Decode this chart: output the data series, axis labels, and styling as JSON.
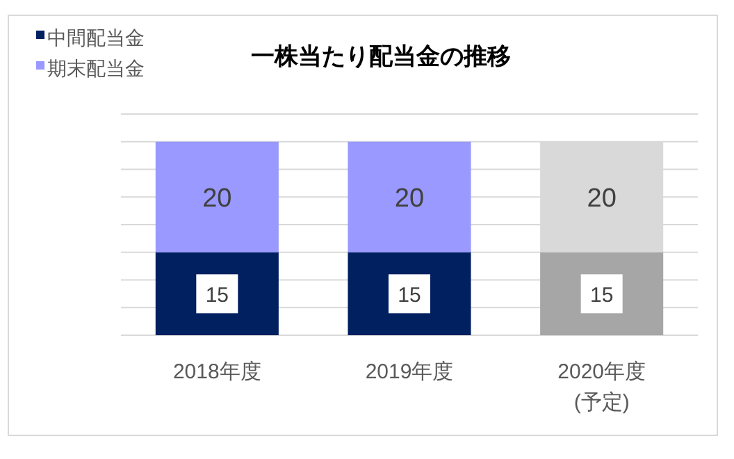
{
  "chart_data": {
    "type": "bar",
    "title": "一株当たり配当金の推移",
    "stacked": true,
    "categories": [
      "2018年度",
      "2019年度",
      "2020年度\n(予定)"
    ],
    "series": [
      {
        "name": "中間配当金",
        "color": "#002060",
        "colors": [
          "#002060",
          "#002060",
          "#a6a6a6"
        ],
        "values": [
          15,
          15,
          15
        ]
      },
      {
        "name": "期末配当金",
        "color": "#9999ff",
        "colors": [
          "#9999ff",
          "#9999ff",
          "#d9d9d9"
        ],
        "values": [
          20,
          20,
          20
        ]
      }
    ],
    "ylim": [
      0,
      40
    ],
    "yticks": [
      0,
      5,
      10,
      15,
      20,
      25,
      30,
      35,
      40
    ],
    "grid": "y",
    "tick_labels": "x",
    "data_labels": true,
    "legend": "top left"
  }
}
